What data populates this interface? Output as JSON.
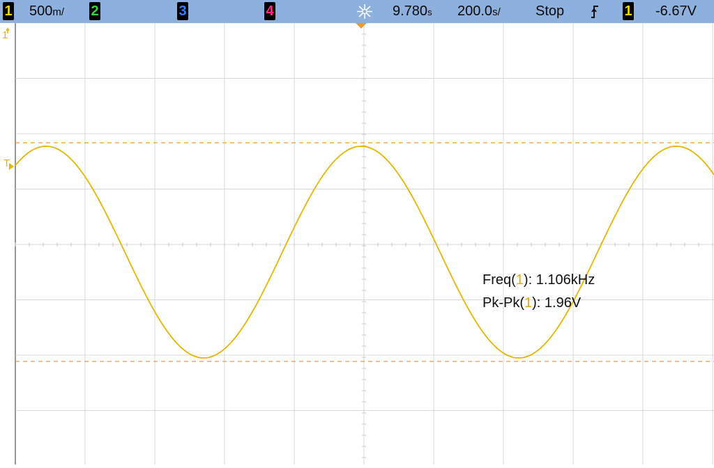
{
  "channels": {
    "ch1": {
      "num": "1",
      "scale": "500",
      "scale_unit": "m/",
      "color": "#f5d400"
    },
    "ch2": {
      "num": "2",
      "color": "#3ad23a"
    },
    "ch3": {
      "num": "3",
      "color": "#3a7aff"
    },
    "ch4": {
      "num": "4",
      "color": "#ff2e86"
    }
  },
  "timebase": {
    "delay": "9.780",
    "delay_unit": "s",
    "scale": "200.0",
    "scale_unit": "s/"
  },
  "run_state": "Stop",
  "trigger": {
    "source": "1",
    "level": "-6.67V"
  },
  "markers": {
    "ch1_ground": "1",
    "trigger_level": "T"
  },
  "measurements": [
    {
      "label": "Freq(",
      "channel": "1",
      "suffix": "): ",
      "value": "1.106kHz"
    },
    {
      "label": "Pk-Pk(",
      "channel": "1",
      "suffix": "): ",
      "value": "1.96V"
    }
  ],
  "colors": {
    "trace": "#e8b400",
    "cursor": "#f09a28",
    "grid": "#d8d8d8",
    "status_bar": "#8db0de"
  }
}
